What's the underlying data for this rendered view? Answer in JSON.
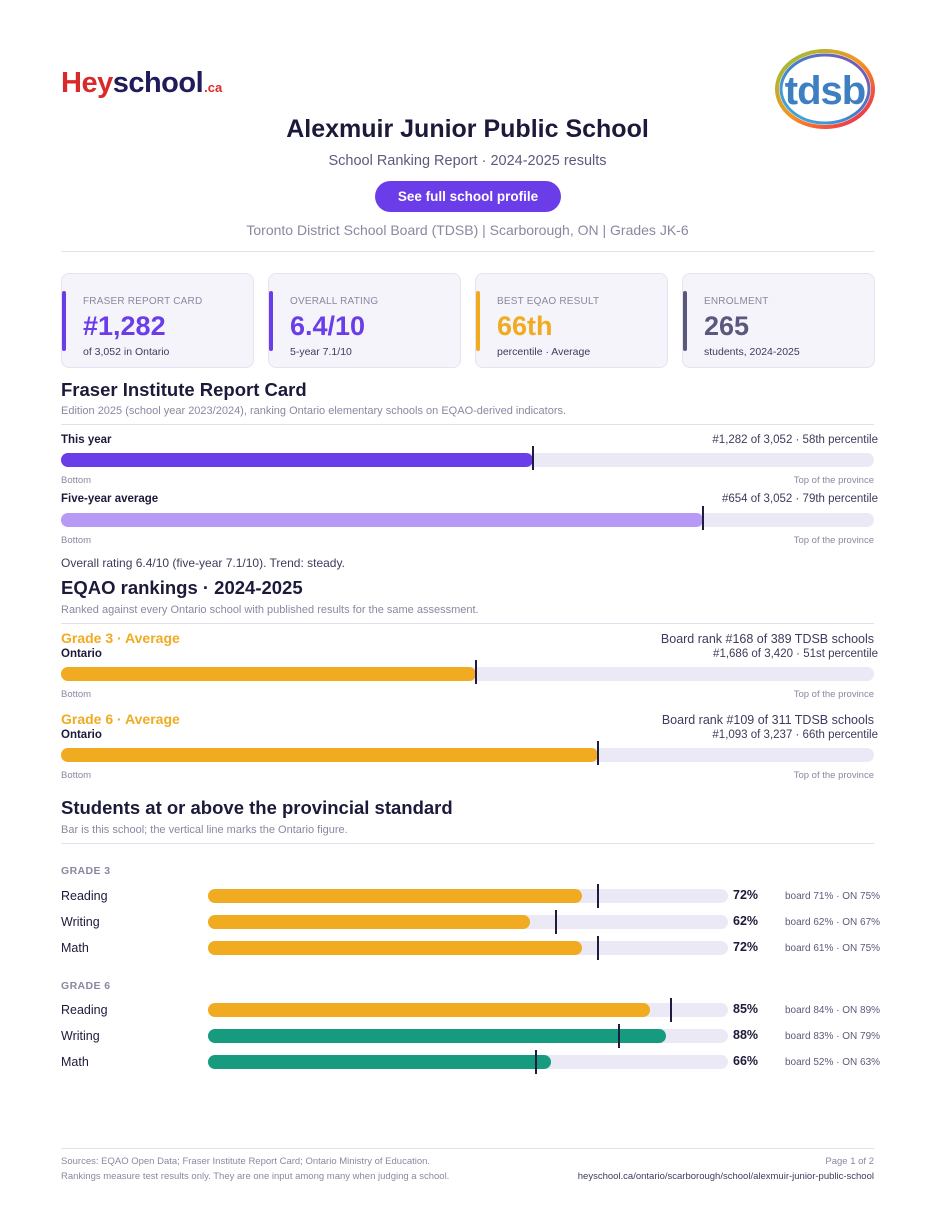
{
  "brand": {
    "hey": "Hey",
    "school": "school",
    "ca": ".ca",
    "board_logo": "tdsb"
  },
  "header": {
    "title": "Alexmuir Junior Public School",
    "subtitle": "School Ranking Report  ·  2024-2025 results",
    "cta_label": "See full school profile",
    "meta": "Toronto District School Board (TDSB)  |  Scarborough, ON  |  Grades JK-6"
  },
  "cards": [
    {
      "label": "FRASER REPORT CARD",
      "value": "#1,282",
      "sub": "of 3,052 in Ontario",
      "color": "#6a3de8"
    },
    {
      "label": "OVERALL RATING",
      "value": "6.4/10",
      "sub": "5-year 7.1/10",
      "color": "#6a3de8"
    },
    {
      "label": "BEST EQAO RESULT",
      "value": "66th",
      "sub": "percentile  ·  Average",
      "color": "#f0ab21"
    },
    {
      "label": "ENROLMENT",
      "value": "265",
      "sub": "students, 2024-2025",
      "color": "#5b587e"
    }
  ],
  "fraser": {
    "heading": "Fraser Institute Report Card",
    "note": "Edition 2025 (school year 2023/2024), ranking Ontario elementary schools on EQAO-derived indicators.",
    "rows": [
      {
        "label": "This year",
        "right": "#1,282 of 3,052  ·  58th percentile",
        "percentile": 58,
        "color": "#6a3de8"
      },
      {
        "label": "Five-year average",
        "right": "#654 of 3,052  ·  79th percentile",
        "percentile": 79,
        "color": "#b69af5"
      }
    ],
    "axis_left": "Bottom",
    "axis_right": "Top of the province",
    "summary": "Overall rating 6.4/10 (five-year 7.1/10). Trend: steady."
  },
  "eqao": {
    "heading": "EQAO rankings  ·  2024-2025",
    "note": "Ranked against every Ontario school with published results for the same assessment.",
    "grades": [
      {
        "head": "Grade 3  ·  Average",
        "scope": "Ontario",
        "board_rank": "Board rank #168 of 389 TDSB schools",
        "ontario_rank": "#1,686 of 3,420  ·  51st percentile",
        "percentile": 51
      },
      {
        "head": "Grade 6  ·  Average",
        "scope": "Ontario",
        "board_rank": "Board rank #109 of 311 TDSB schools",
        "ontario_rank": "#1,093 of 3,237  ·  66th percentile",
        "percentile": 66
      }
    ],
    "axis_left": "Bottom",
    "axis_right": "Top of the province",
    "color": "#f0ab21"
  },
  "standard": {
    "heading": "Students at or above the provincial standard",
    "note": "Bar is this school; the vertical line marks the Ontario figure.",
    "groups": [
      {
        "grade": "GRADE 3",
        "rows": [
          {
            "subject": "Reading",
            "school": 72,
            "pct": "72%",
            "ontario": 75,
            "cmp": "board 71%  ·  ON 75%",
            "color": "#f0ab21"
          },
          {
            "subject": "Writing",
            "school": 62,
            "pct": "62%",
            "ontario": 67,
            "cmp": "board 62%  ·  ON 67%",
            "color": "#f0ab21"
          },
          {
            "subject": "Math",
            "school": 72,
            "pct": "72%",
            "ontario": 75,
            "cmp": "board 61%  ·  ON 75%",
            "color": "#f0ab21"
          }
        ]
      },
      {
        "grade": "GRADE 6",
        "rows": [
          {
            "subject": "Reading",
            "school": 85,
            "pct": "85%",
            "ontario": 89,
            "cmp": "board 84%  ·  ON 89%",
            "color": "#f0ab21"
          },
          {
            "subject": "Writing",
            "school": 88,
            "pct": "88%",
            "ontario": 79,
            "cmp": "board 83%  ·  ON 79%",
            "color": "#169b7e"
          },
          {
            "subject": "Math",
            "school": 66,
            "pct": "66%",
            "ontario": 63,
            "cmp": "board 52%  ·  ON 63%",
            "color": "#169b7e"
          }
        ]
      }
    ]
  },
  "footer": {
    "sources": "Sources: EQAO Open Data; Fraser Institute Report Card; Ontario Ministry of Education.",
    "disclaimer": "Rankings measure test results only. They are one input among many when judging a school.",
    "page": "Page 1 of 2",
    "url": "heyschool.ca/ontario/scarborough/school/alexmuir-junior-public-school"
  }
}
